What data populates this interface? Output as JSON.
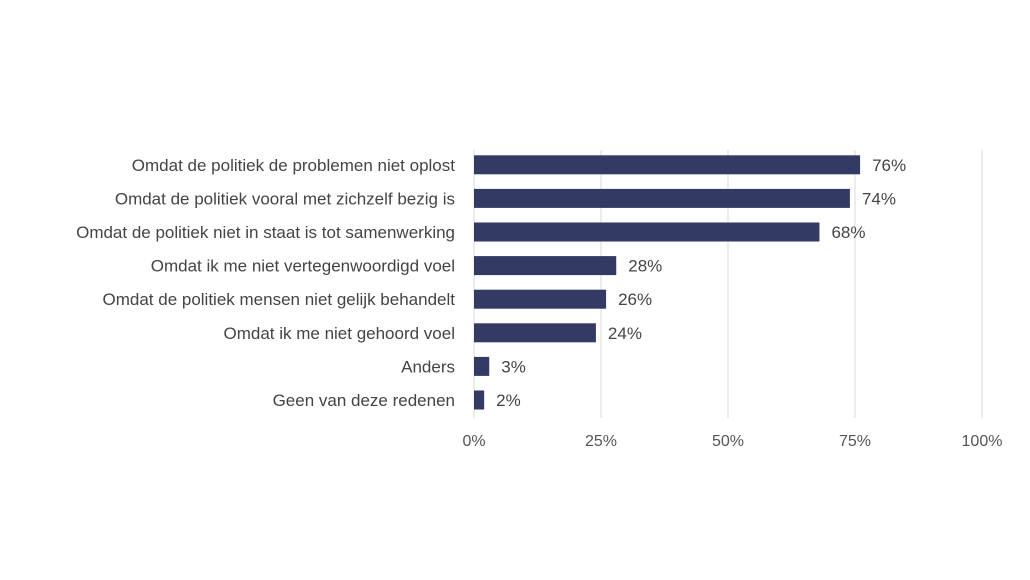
{
  "chart_data": {
    "type": "bar",
    "orientation": "horizontal",
    "categories": [
      "Omdat de politiek de problemen niet oplost",
      "Omdat de politiek vooral met zichzelf bezig is",
      "Omdat de politiek niet in staat is tot samenwerking",
      "Omdat ik me niet vertegenwoordigd voel",
      "Omdat de politiek mensen niet gelijk behandelt",
      "Omdat ik me niet gehoord voel",
      "Anders",
      "Geen van deze redenen"
    ],
    "values": [
      76,
      74,
      68,
      28,
      26,
      24,
      3,
      2
    ],
    "value_labels": [
      "76%",
      "74%",
      "68%",
      "28%",
      "26%",
      "24%",
      "3%",
      "2%"
    ],
    "x_ticks": [
      0,
      25,
      50,
      75,
      100
    ],
    "x_tick_labels": [
      "0%",
      "25%",
      "50%",
      "75%",
      "100%"
    ],
    "xlim": [
      0,
      100
    ],
    "grid": "vertical",
    "legend": "none",
    "bar_color": "#333a63",
    "title": "",
    "xlabel": "",
    "ylabel": ""
  }
}
